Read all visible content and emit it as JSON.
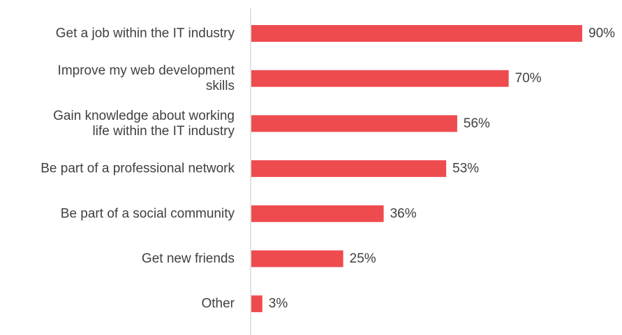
{
  "chart_data": {
    "type": "bar",
    "orientation": "horizontal",
    "categories": [
      [
        "Get a job within the IT industry"
      ],
      [
        "Improve my web development",
        "skills"
      ],
      [
        "Gain knowledge about working",
        "life within the IT industry"
      ],
      [
        "Be part of a professional network"
      ],
      [
        "Be part of a social community"
      ],
      [
        "Get new friends"
      ],
      [
        "Other"
      ]
    ],
    "values": [
      90,
      70,
      56,
      53,
      36,
      25,
      3
    ],
    "value_labels": [
      "90%",
      "70%",
      "56%",
      "53%",
      "36%",
      "25%",
      "3%"
    ],
    "xlim": [
      0,
      100
    ],
    "grid": false,
    "bar_color": "#ee4b4f",
    "axis_color": "#d9d9d9",
    "text_color": "#404040"
  }
}
